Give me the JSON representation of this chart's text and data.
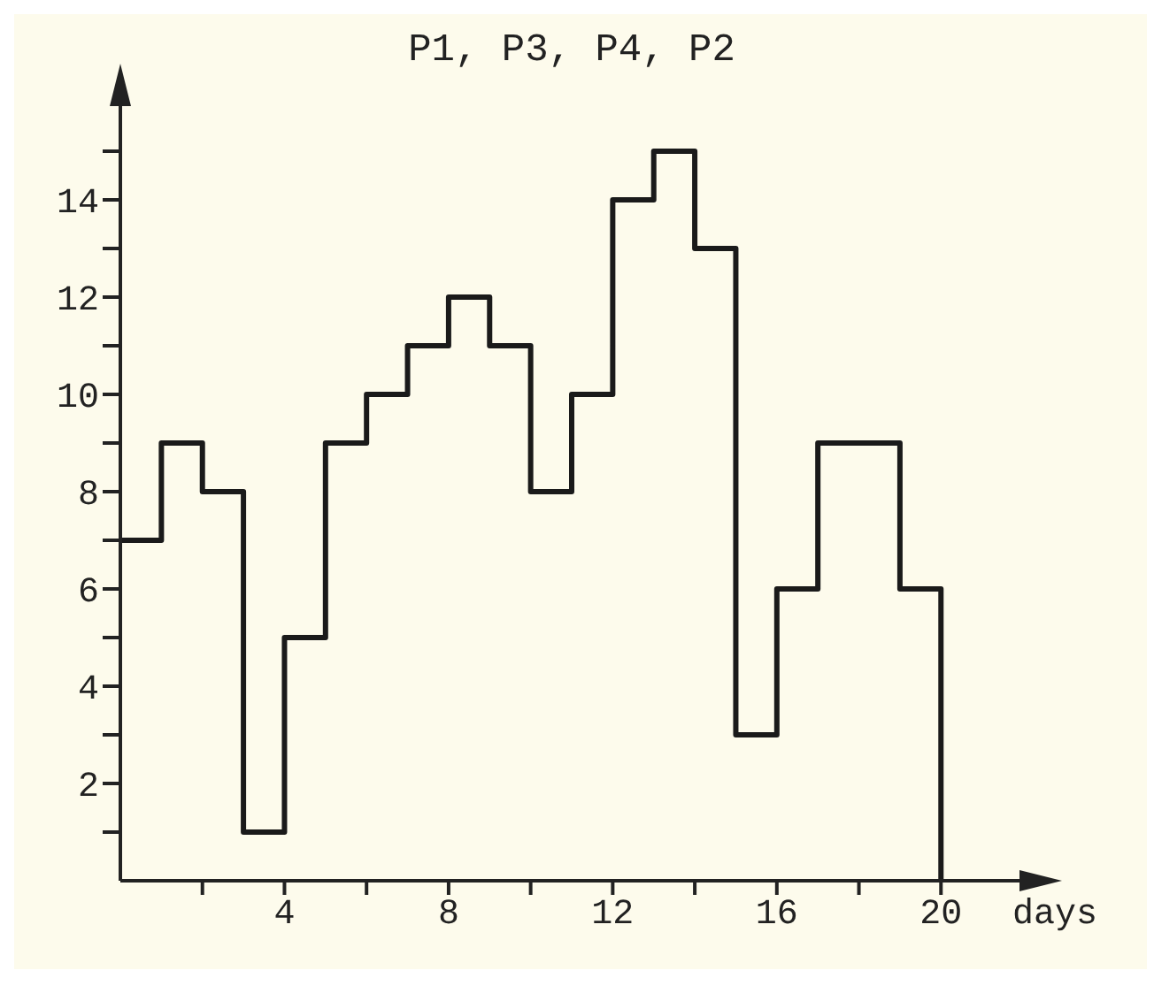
{
  "chart_data": {
    "type": "step",
    "title": "P1, P3, P4, P2",
    "xlabel": "days",
    "x": [
      0,
      1,
      2,
      3,
      4,
      5,
      6,
      7,
      8,
      9,
      10,
      11,
      12,
      13,
      14,
      15,
      16,
      17,
      18,
      19,
      20
    ],
    "series": [
      {
        "color": "#1a1a1a",
        "values": [
          7,
          9,
          8,
          1,
          5,
          9,
          10,
          11,
          12,
          11,
          8,
          10,
          14,
          15,
          13,
          3,
          6,
          9,
          9,
          6,
          0
        ]
      }
    ],
    "xlim": [
      0,
      22
    ],
    "ylim": [
      0,
      16
    ],
    "xticks": [
      {
        "value": 2,
        "label": null
      },
      4,
      {
        "value": 6,
        "label": null
      },
      8,
      {
        "value": 10,
        "label": null
      },
      12,
      {
        "value": 14,
        "label": null
      },
      16,
      {
        "value": 18,
        "label": null
      },
      20
    ],
    "yticks": [
      {
        "value": 1,
        "label": null
      },
      2,
      {
        "value": 3,
        "label": null
      },
      4,
      {
        "value": 5,
        "label": null
      },
      6,
      {
        "value": 7,
        "label": null
      },
      8,
      {
        "value": 9,
        "label": null
      },
      10,
      {
        "value": 11,
        "label": null
      },
      12,
      {
        "value": 13,
        "label": null
      },
      14,
      {
        "value": 15,
        "label": null
      }
    ],
    "marker": "none",
    "line_style": "solid"
  }
}
